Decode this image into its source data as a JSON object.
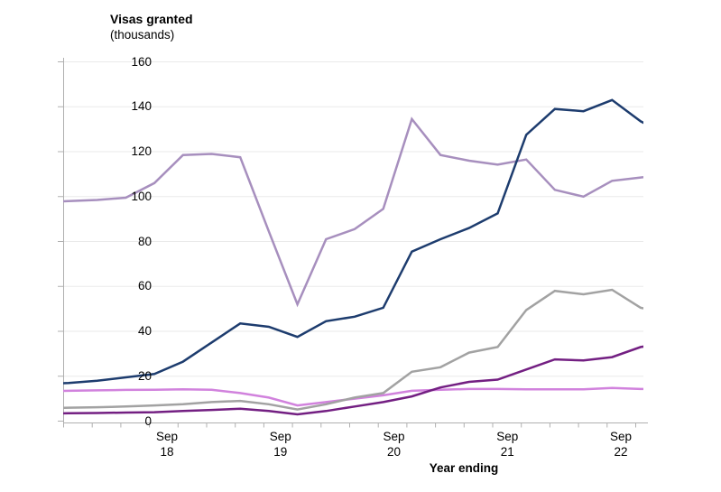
{
  "chart": {
    "title": "Visas granted",
    "subtitle": "(thousands)",
    "x_axis_title": "Year ending"
  },
  "colors": {
    "axis": "#b0b0b0",
    "grid": "#eaeaea",
    "text": "#000000",
    "background": "#ffffff"
  },
  "chart_data": {
    "type": "line",
    "title": "Visas granted",
    "subtitle": "(thousands)",
    "xlabel": "Year ending",
    "ylabel": "",
    "ylim": [
      0,
      160
    ],
    "y_ticks": [
      0,
      20,
      40,
      60,
      80,
      100,
      120,
      140,
      160
    ],
    "x_tick_labels": [
      "Sep 18",
      "Sep 19",
      "Sep 20",
      "Sep 21",
      "Sep 22"
    ],
    "x_minor_ticks_per_year": 4,
    "grid": "horizontal",
    "legend": "none",
    "x_description": "quarterly year-ending periods, Sep 2017 to Dec 2022 (first and last points clipped at plot edges)",
    "series": [
      {
        "name": "light-magenta",
        "color": "#d182dd",
        "values": [
          13.3,
          13.5,
          13.7,
          13.9,
          14,
          14.2,
          14,
          12.5,
          10.5,
          7,
          8.5,
          10,
          11.5,
          13.5,
          14,
          14.3,
          14.3,
          14.2,
          14.2,
          14.2,
          14.8,
          14.3,
          14.2
        ]
      },
      {
        "name": "grey",
        "color": "#a2a2a2",
        "values": [
          5.8,
          6,
          6.2,
          6.5,
          7,
          7.5,
          8.5,
          9,
          7.5,
          5.2,
          7.5,
          10.5,
          12.5,
          22,
          24,
          30.5,
          33,
          49.5,
          58,
          56.5,
          58.5,
          50.5,
          48
        ]
      },
      {
        "name": "dark-purple",
        "color": "#731f82",
        "values": [
          3.3,
          3.5,
          3.6,
          3.8,
          4,
          4.5,
          5,
          5.5,
          4.5,
          3,
          4.5,
          6.5,
          8.5,
          11,
          15,
          17.5,
          18.5,
          23,
          27.5,
          27,
          28.5,
          33,
          35
        ]
      },
      {
        "name": "mauve",
        "color": "#a78fbe",
        "values": [
          97.5,
          98,
          98.5,
          99.5,
          106,
          118.5,
          119,
          117.5,
          84.5,
          52,
          81,
          85.5,
          94.5,
          134.5,
          118.5,
          116,
          114.2,
          116.5,
          103,
          100,
          107,
          108.5,
          110
        ]
      },
      {
        "name": "dark-blue",
        "color": "#1d3c6e",
        "values": [
          16.5,
          17,
          18,
          19.5,
          21,
          26.5,
          35,
          43.5,
          42,
          37.5,
          44.5,
          46.5,
          50.5,
          75.5,
          81,
          86,
          92.5,
          127.5,
          139,
          138,
          143,
          133.5,
          127
        ]
      }
    ]
  }
}
